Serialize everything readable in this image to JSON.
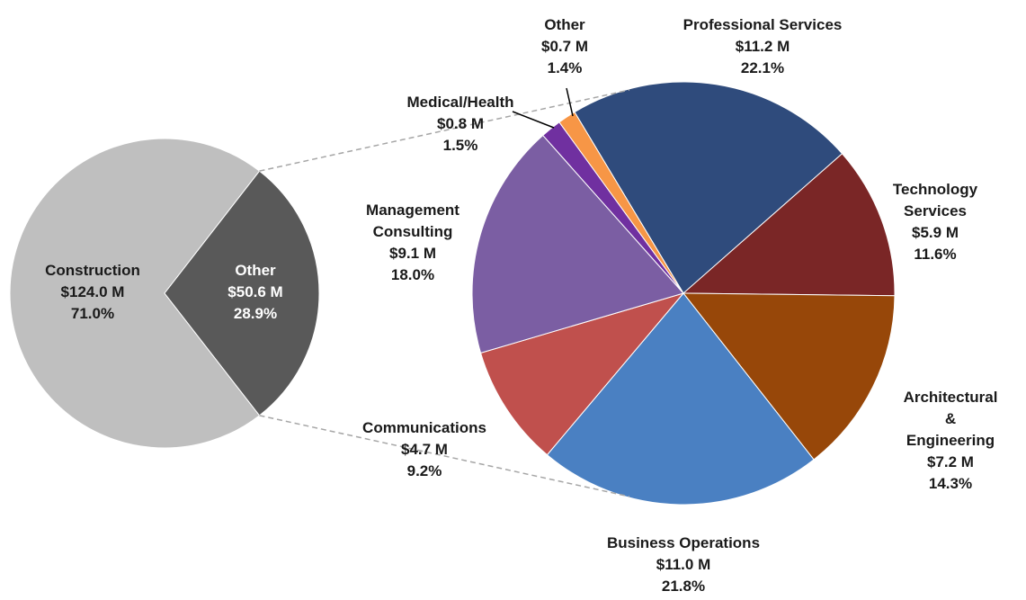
{
  "chart_data": [
    {
      "type": "pie",
      "categories": [
        "Construction",
        "Other"
      ],
      "values": [
        124.0,
        50.6
      ],
      "value_labels": [
        "$124.0 M",
        "$50.6 M"
      ],
      "percents": [
        71.0,
        28.9
      ],
      "percent_labels": [
        "71.0%",
        "28.9%"
      ],
      "colors": [
        "#bfbfbf",
        "#595959"
      ]
    },
    {
      "type": "pie",
      "categories": [
        "Professional Services",
        "Technology\nServices",
        "Architectural &\nEngineering",
        "Business Operations",
        "Communications",
        "Management\nConsulting",
        "Medical/Health",
        "Other"
      ],
      "values": [
        11.2,
        5.9,
        7.2,
        11.0,
        4.7,
        9.1,
        0.8,
        0.7
      ],
      "value_labels": [
        "$11.2 M",
        "$5.9 M",
        "$7.2 M",
        "$11.0 M",
        "$4.7 M",
        "$9.1 M",
        "$0.8 M",
        "$0.7 M"
      ],
      "percents": [
        22.1,
        11.6,
        14.3,
        21.8,
        9.2,
        18.0,
        1.5,
        1.4
      ],
      "percent_labels": [
        "22.1%",
        "11.6%",
        "14.3%",
        "21.8%",
        "9.2%",
        "18.0%",
        "1.5%",
        "1.4%"
      ],
      "colors": [
        "#2f4b7c",
        "#7a2626",
        "#974709",
        "#4a80c2",
        "#c0504d",
        "#7b5ea3",
        "#7030a0",
        "#f79646"
      ]
    }
  ]
}
